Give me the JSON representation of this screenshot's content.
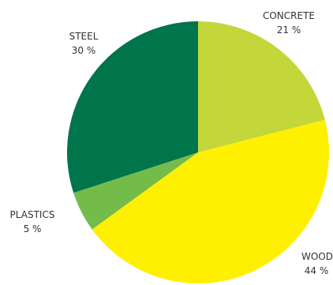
{
  "chart_data": {
    "type": "pie",
    "start_angle_deg": 0,
    "direction": "clockwise",
    "slices": [
      {
        "label": "CONCRETE",
        "value": 21,
        "value_label": "21 %",
        "color": "#c3d73a"
      },
      {
        "label": "WOOD",
        "value": 44,
        "value_label": "44 %",
        "color": "#ffef00"
      },
      {
        "label": "PLASTICS",
        "value": 5,
        "value_label": "5 %",
        "color": "#74bc4a"
      },
      {
        "label": "STEEL",
        "value": 30,
        "value_label": "30 %",
        "color": "#00744a"
      }
    ]
  }
}
